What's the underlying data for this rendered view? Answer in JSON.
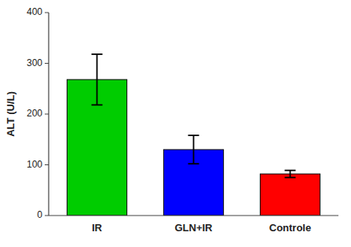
{
  "chart_data": {
    "type": "bar",
    "categories": [
      "IR",
      "GLN+IR",
      "Controle"
    ],
    "values": [
      268,
      130,
      82
    ],
    "errors": [
      50,
      28,
      7
    ],
    "colors": [
      "#00CC00",
      "#0000FF",
      "#FF0000"
    ],
    "ylabel": "ALT (U/L)",
    "ylim": [
      0,
      400
    ],
    "yticks": [
      0,
      100,
      200,
      300,
      400
    ],
    "grid": false
  }
}
